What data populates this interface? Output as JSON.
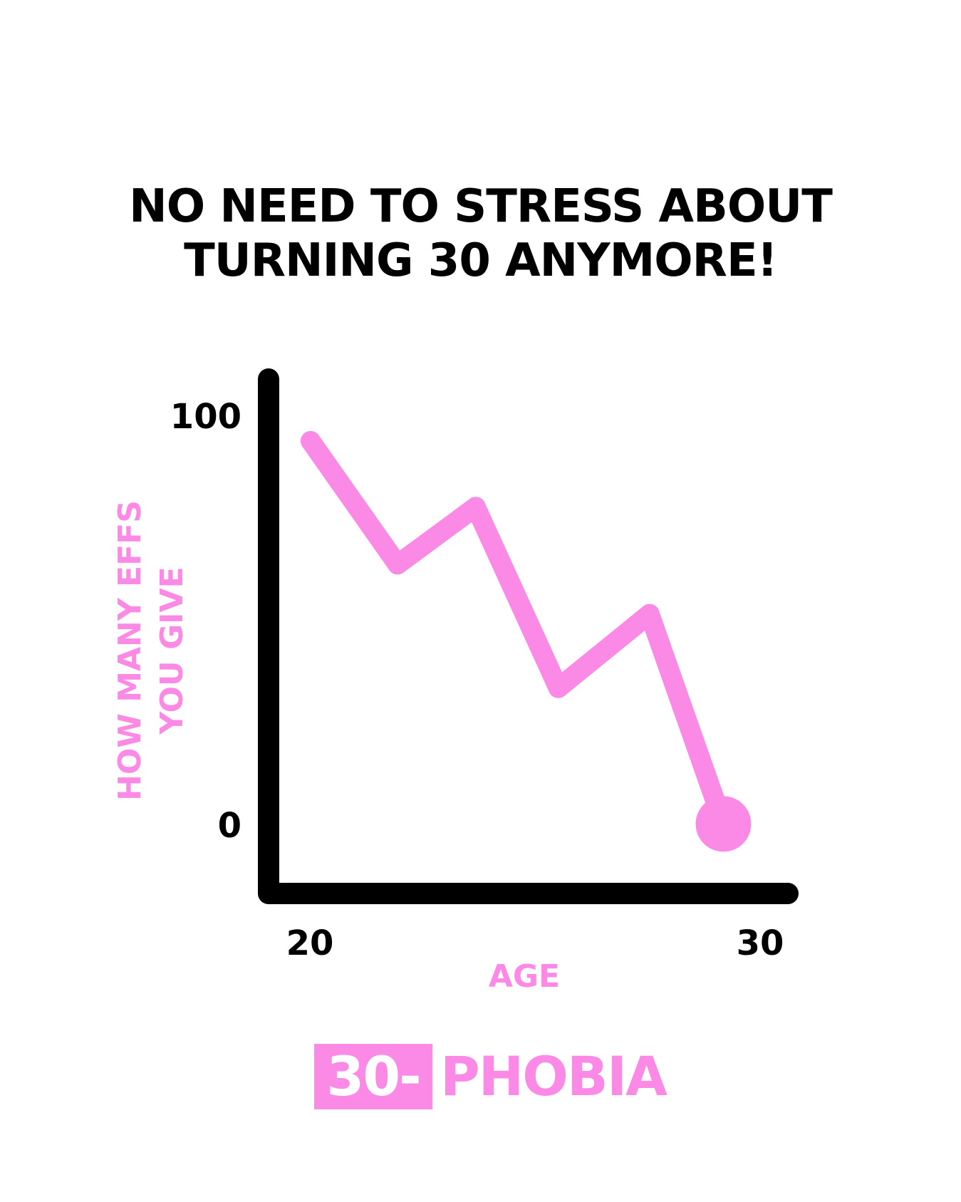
{
  "title": {
    "line1": "NO NEED TO STRESS ABOUT",
    "line2": "TURNING 30 ANYMORE!"
  },
  "colors": {
    "accent": "#fa8ae6",
    "axis": "#000000",
    "background": "#ffffff"
  },
  "chart_data": {
    "type": "line",
    "xlabel": "AGE",
    "ylabel_lines": [
      "HOW MANY EFFS",
      "YOU GIVE"
    ],
    "x_ticks": [
      "20",
      "30"
    ],
    "y_ticks": [
      "0",
      "100"
    ],
    "xlim": [
      20,
      30
    ],
    "ylim": [
      0,
      100
    ],
    "grid": false,
    "series": [
      {
        "points": [
          {
            "x": 20,
            "y": 95
          },
          {
            "x": 22,
            "y": 65
          },
          {
            "x": 23.8,
            "y": 79
          },
          {
            "x": 25.7,
            "y": 35
          },
          {
            "x": 27.8,
            "y": 53
          },
          {
            "x": 29.5,
            "y": 2
          }
        ],
        "end_marker": true
      }
    ]
  },
  "logo": {
    "box_text": "30-",
    "word": "PHOBIA"
  }
}
